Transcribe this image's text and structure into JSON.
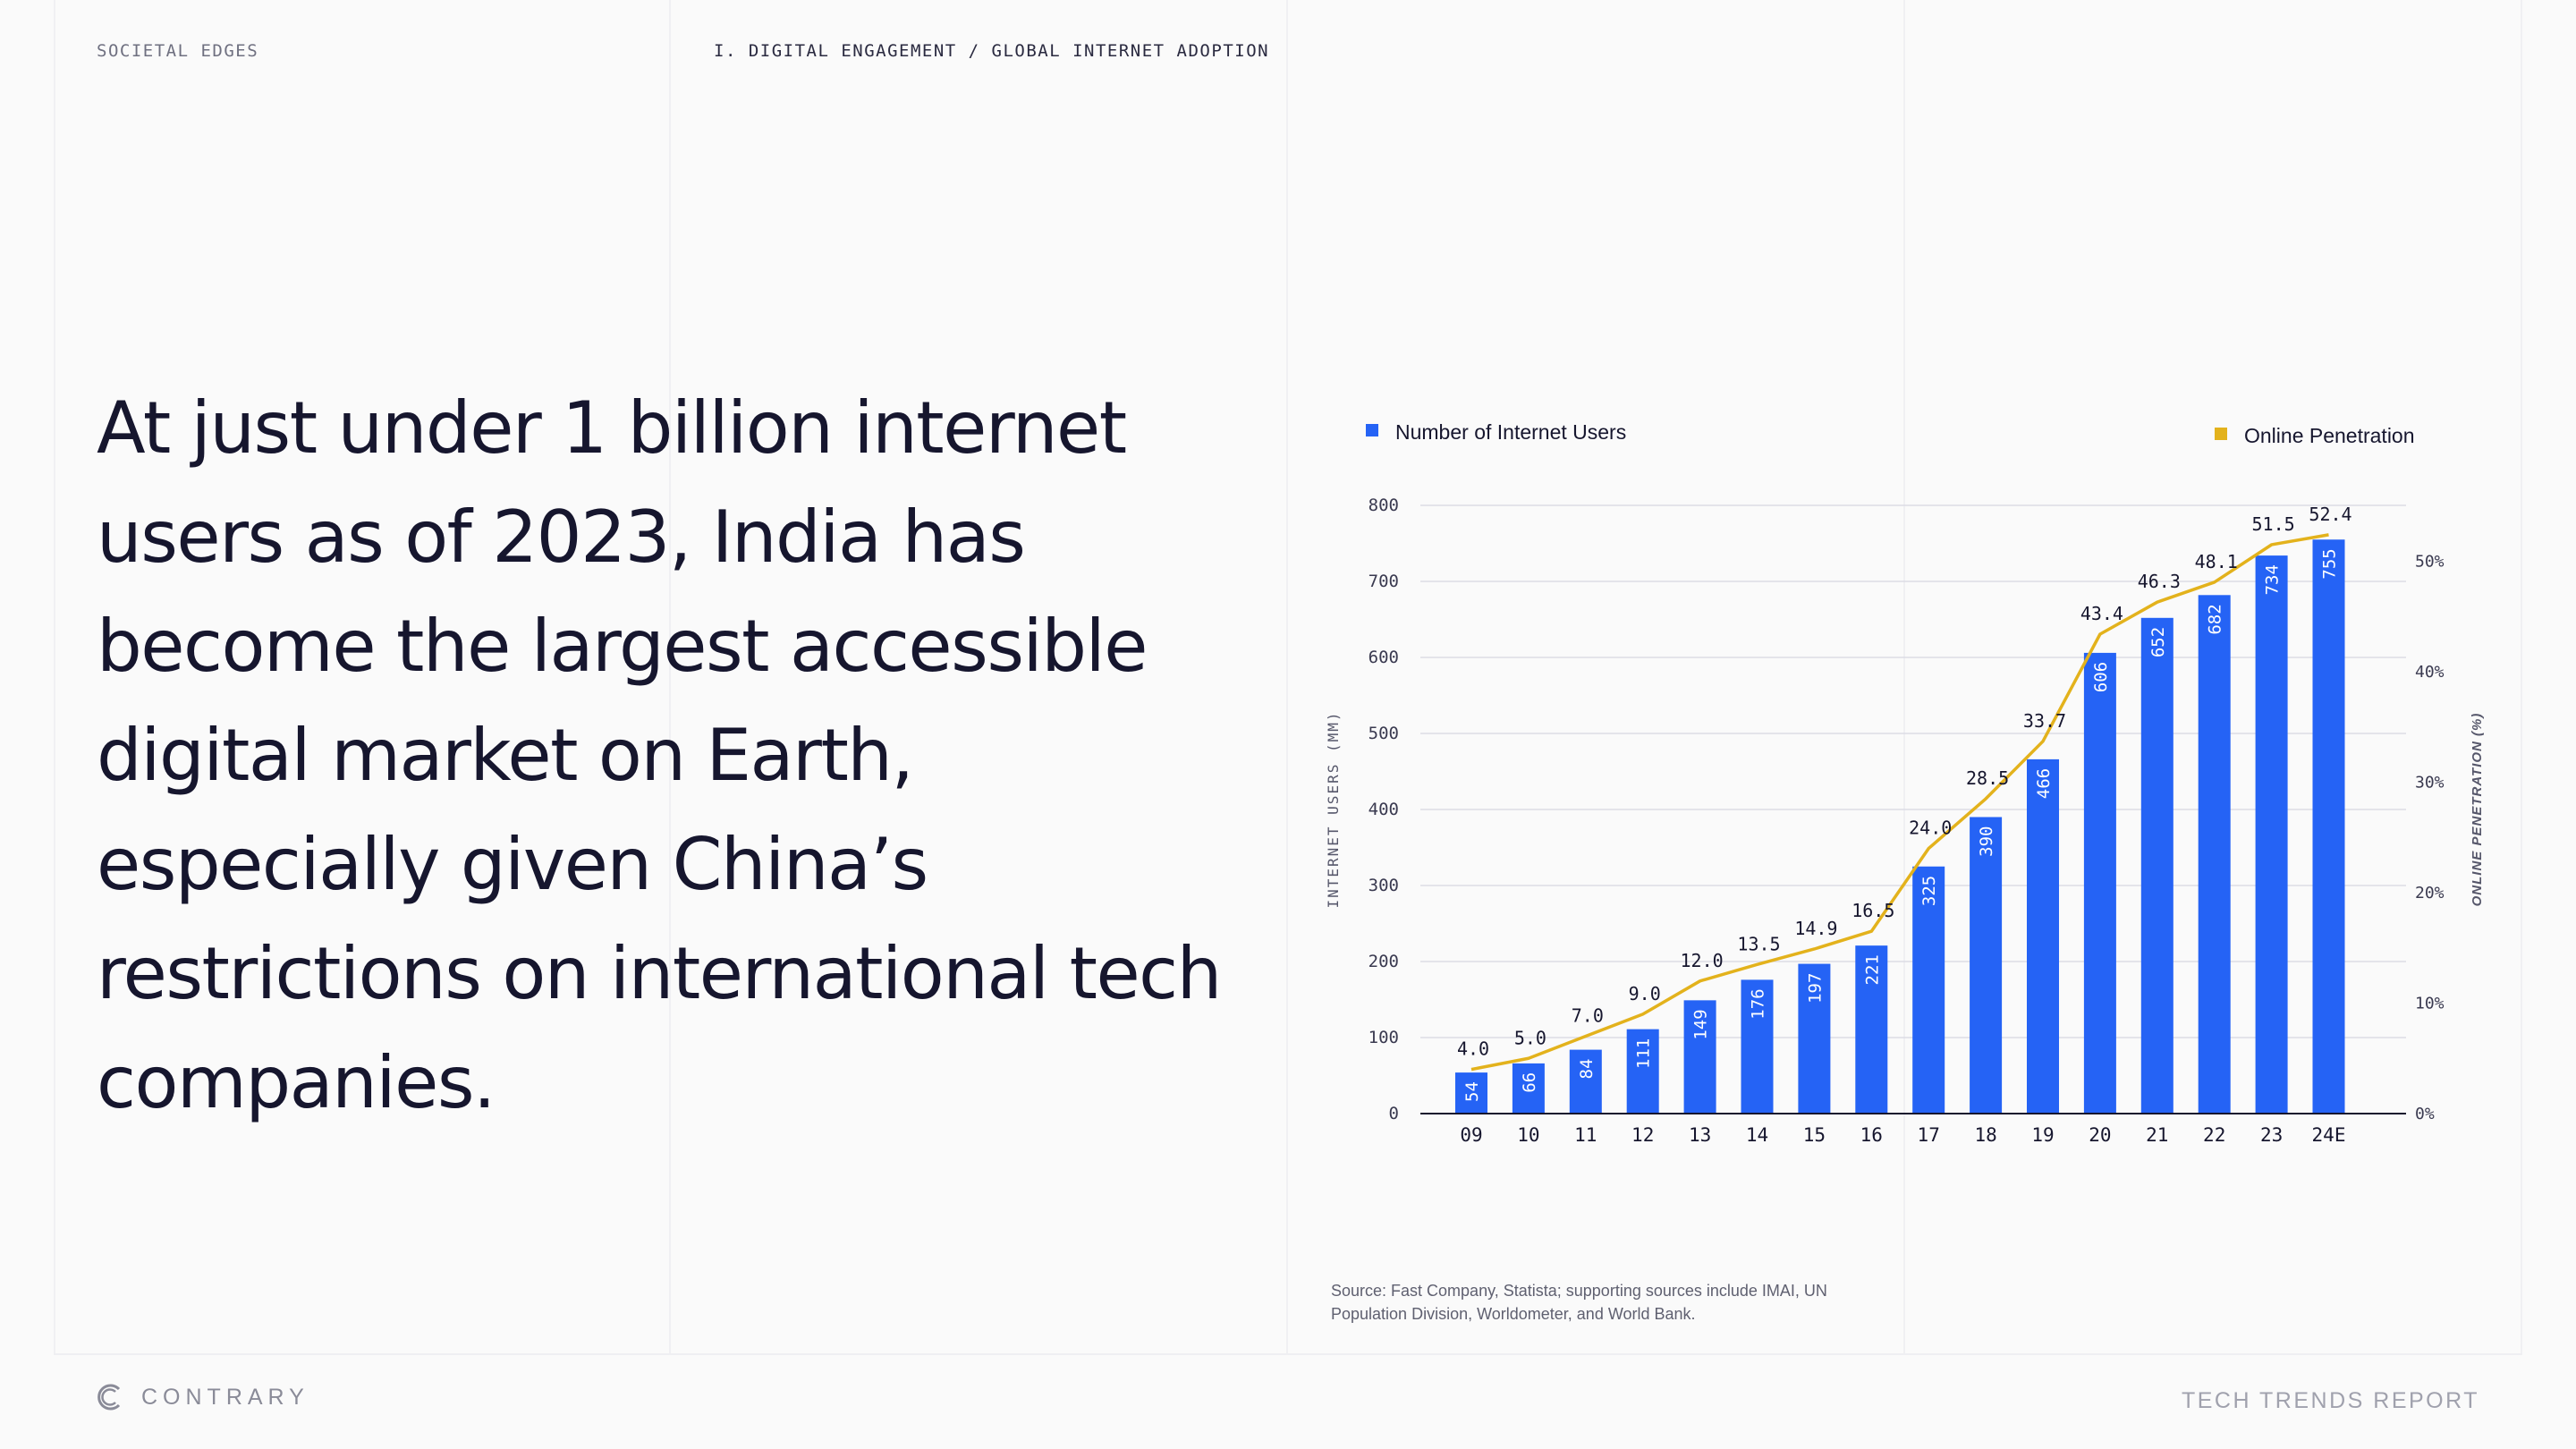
{
  "header": {
    "section": "SOCIETAL EDGES",
    "breadcrumb": "I. DIGITAL ENGAGEMENT / GLOBAL INTERNET ADOPTION"
  },
  "headline": "At just under 1 billion internet users as of 2023, India has become the largest accessible digital market on Earth, especially given China’s restrictions on international tech companies.",
  "source": "Source: Fast Company, Statista; supporting sources include IMAI, UN Population Division, Worldometer, and World Bank.",
  "footer": {
    "logo_text": "CONTRARY",
    "report_title": "TECH TRENDS REPORT"
  },
  "colors": {
    "bar": "#2563f5",
    "line": "#e3b21c",
    "text": "#16162e",
    "grid": "#dcdce4"
  },
  "chart_data": {
    "type": "bar",
    "categories": [
      "09",
      "10",
      "11",
      "12",
      "13",
      "14",
      "15",
      "16",
      "17",
      "18",
      "19",
      "20",
      "21",
      "22",
      "23",
      "24E"
    ],
    "series": [
      {
        "name": "Number of Internet Users",
        "type": "bar",
        "axis": "left",
        "values": [
          54,
          66,
          84,
          111,
          149,
          176,
          197,
          221,
          325,
          390,
          466,
          606,
          652,
          682,
          734,
          755
        ]
      },
      {
        "name": "Online Penetration",
        "type": "line",
        "axis": "right",
        "values": [
          4.0,
          5.0,
          7.0,
          9.0,
          12.0,
          13.5,
          14.9,
          16.5,
          24.0,
          28.5,
          33.7,
          43.4,
          46.3,
          48.1,
          51.5,
          52.4
        ]
      }
    ],
    "ylabel": "INTERNET USERS (MM)",
    "ylim": [
      0,
      800
    ],
    "yticks": [
      0,
      100,
      200,
      300,
      400,
      500,
      600,
      700,
      800
    ],
    "y2label": "ONLINE PENETRATION (%)",
    "y2lim": [
      0,
      55
    ],
    "y2ticks": [
      "0%",
      "10%",
      "20%",
      "30%",
      "40%",
      "50%"
    ],
    "legend": [
      "Number of Internet Users",
      "Online Penetration"
    ],
    "grid": true
  }
}
